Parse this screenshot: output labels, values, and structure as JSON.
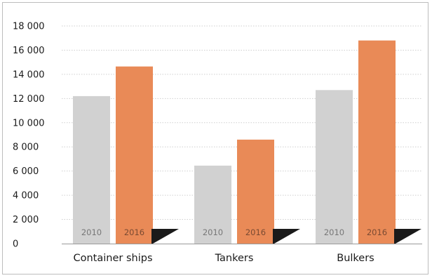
{
  "chart_data": {
    "type": "bar",
    "categories": [
      "Container ships",
      "Tankers",
      "Bulkers"
    ],
    "series": [
      {
        "name": "2010",
        "values": [
          12200,
          6450,
          12700
        ]
      },
      {
        "name": "2016",
        "values": [
          14650,
          8600,
          16800
        ]
      }
    ],
    "bar_labels": [
      "2010",
      "2016"
    ],
    "title": "",
    "xlabel": "",
    "ylabel": "",
    "ylim": [
      0,
      18000
    ],
    "yticks": [
      {
        "value": 0,
        "label": "0"
      },
      {
        "value": 2000,
        "label": "2 000"
      },
      {
        "value": 4000,
        "label": "4 000"
      },
      {
        "value": 6000,
        "label": "6 000"
      },
      {
        "value": 8000,
        "label": "8 000"
      },
      {
        "value": 10000,
        "label": "10 000"
      },
      {
        "value": 12000,
        "label": "12 000"
      },
      {
        "value": 14000,
        "label": "14 000"
      },
      {
        "value": 16000,
        "label": "16 000"
      },
      {
        "value": 18000,
        "label": "18 000"
      }
    ],
    "grid": true,
    "legend": "none",
    "colors": {
      "series_2010": "#d1d1d1",
      "series_2016": "#e98a57",
      "gridline": "#cfcfcf",
      "label_2010": "#777777",
      "label_2016": "#7a4a32",
      "accent_triangle": "#1a1a1a"
    }
  }
}
